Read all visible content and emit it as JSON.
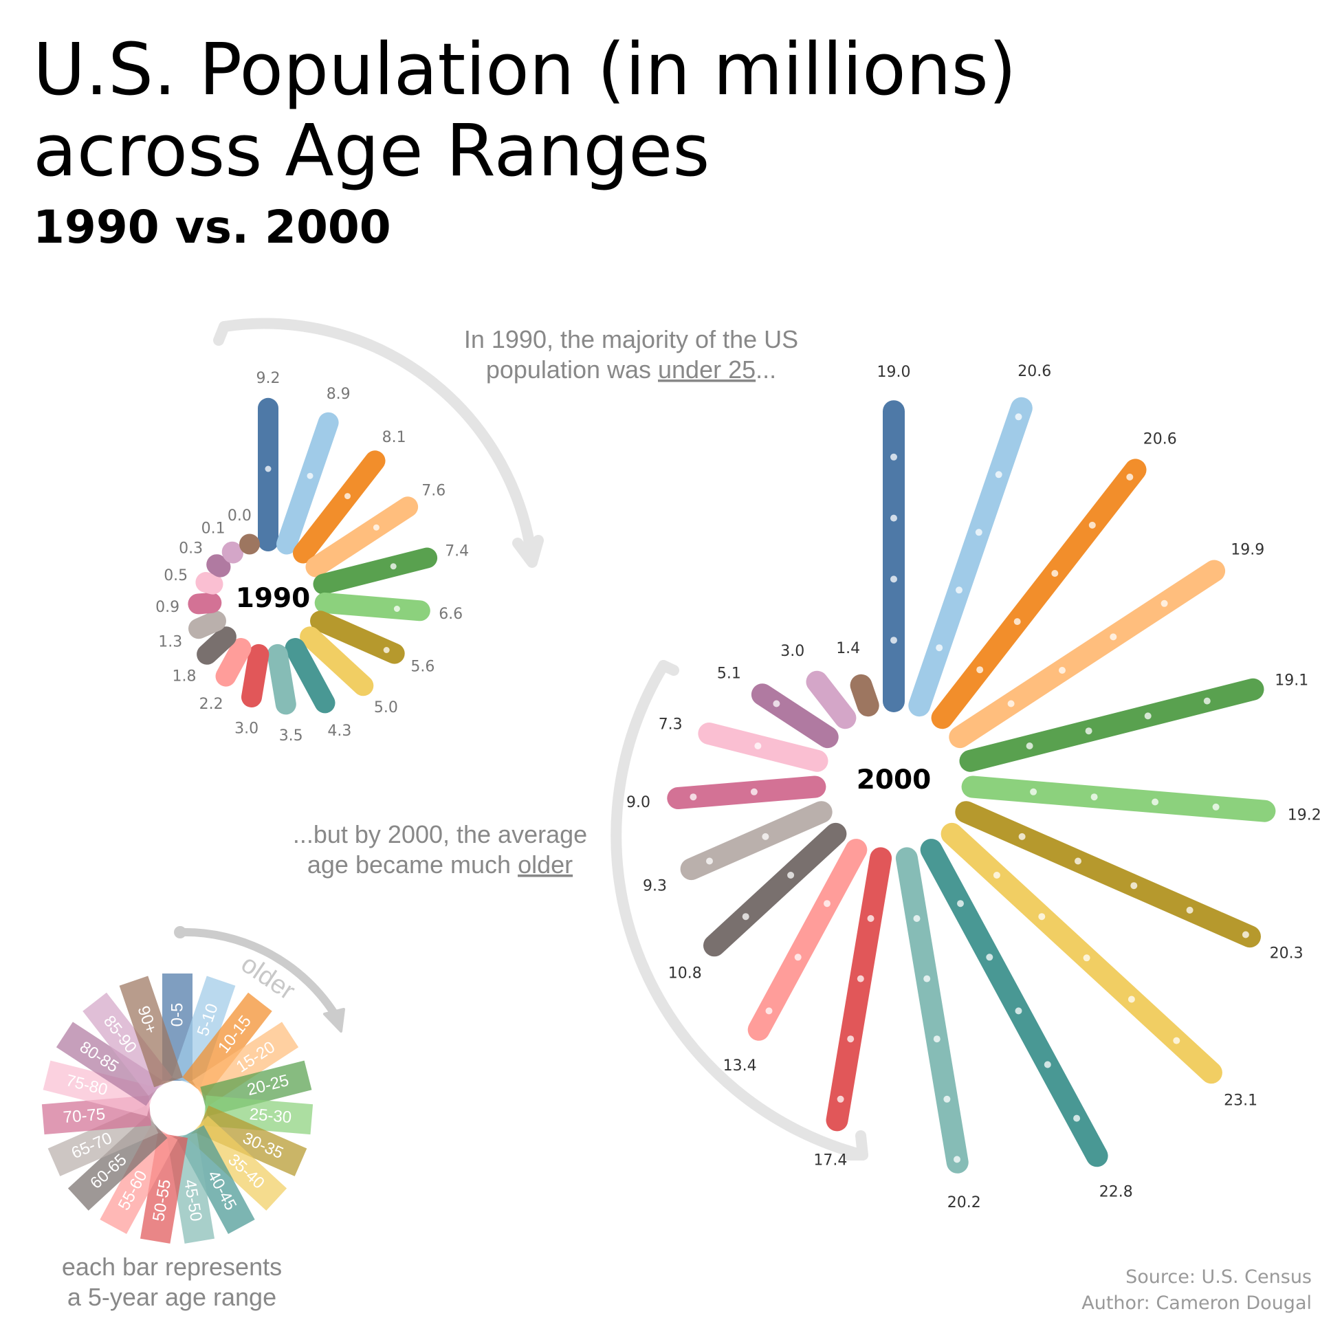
{
  "title_line1": "U.S. Population (in millions)",
  "title_line2": "across Age Ranges",
  "subtitle": "1990 vs. 2000",
  "chart_data": {
    "type": "radial-bar",
    "title": "U.S. Population (in millions) across Age Ranges",
    "subtitle": "1990 vs. 2000",
    "unit": "millions",
    "categories": [
      "0-5",
      "5-10",
      "10-15",
      "15-20",
      "20-25",
      "25-30",
      "30-35",
      "35-40",
      "40-45",
      "45-50",
      "50-55",
      "55-60",
      "60-65",
      "65-70",
      "70-75",
      "75-80",
      "80-85",
      "85-90",
      "90+"
    ],
    "colors": [
      "#4e79a7",
      "#a0cbe8",
      "#f28e2b",
      "#ffbe7d",
      "#59a14f",
      "#8cd17d",
      "#b6992d",
      "#f1ce63",
      "#499894",
      "#86bcb6",
      "#e15759",
      "#ff9d9a",
      "#79706e",
      "#bab0ac",
      "#d37295",
      "#fabfd2",
      "#b07aa1",
      "#d4a6c8",
      "#9d7660"
    ],
    "series": [
      {
        "name": "1990",
        "values": [
          9.2,
          8.9,
          8.1,
          7.6,
          7.4,
          6.6,
          5.6,
          5.0,
          4.3,
          3.5,
          3.0,
          2.2,
          1.8,
          1.3,
          0.9,
          0.5,
          0.3,
          0.1,
          0.0
        ]
      },
      {
        "name": "2000",
        "values": [
          19.0,
          20.6,
          20.6,
          19.9,
          19.1,
          19.2,
          20.3,
          23.1,
          22.8,
          20.2,
          17.4,
          13.4,
          10.8,
          9.3,
          9.0,
          7.3,
          5.1,
          3.0,
          1.4
        ]
      }
    ],
    "labels_1990": [
      "9.2",
      "8.9",
      "8.1",
      "7.6",
      "7.4",
      "6.6",
      "5.6",
      "5.0",
      "4.3",
      "3.5",
      "3.0",
      "2.2",
      "1.8",
      "1.3",
      "0.9",
      "0.5",
      "0.3",
      "0.1",
      "0.0"
    ],
    "labels_2000": [
      "19.0",
      "20.6",
      "20.6",
      "19.9",
      "19.1",
      "19.2",
      "20.3",
      "23.1",
      "22.8",
      "20.2",
      "17.4",
      "13.4",
      "10.8",
      "9.3",
      "9.0",
      "7.3",
      "5.1",
      "3.0",
      "1.4"
    ],
    "center_labels": [
      "1990",
      "2000"
    ],
    "annotations": {
      "note_1990_line1": "In 1990, the majority of the US",
      "note_1990_line2_pre": "population was ",
      "note_1990_line2_underlined": "under 25",
      "note_1990_line2_post": "...",
      "note_2000_line1": "...but by 2000, the average",
      "note_2000_line2_pre": "age became much ",
      "note_2000_line2_underlined": "older"
    },
    "legend": {
      "arrow_label": "older",
      "caption_line1": "each bar represents",
      "caption_line2": "a 5-year age range"
    }
  },
  "credits": {
    "source": "Source: U.S. Census",
    "author": "Author: Cameron Dougal"
  }
}
